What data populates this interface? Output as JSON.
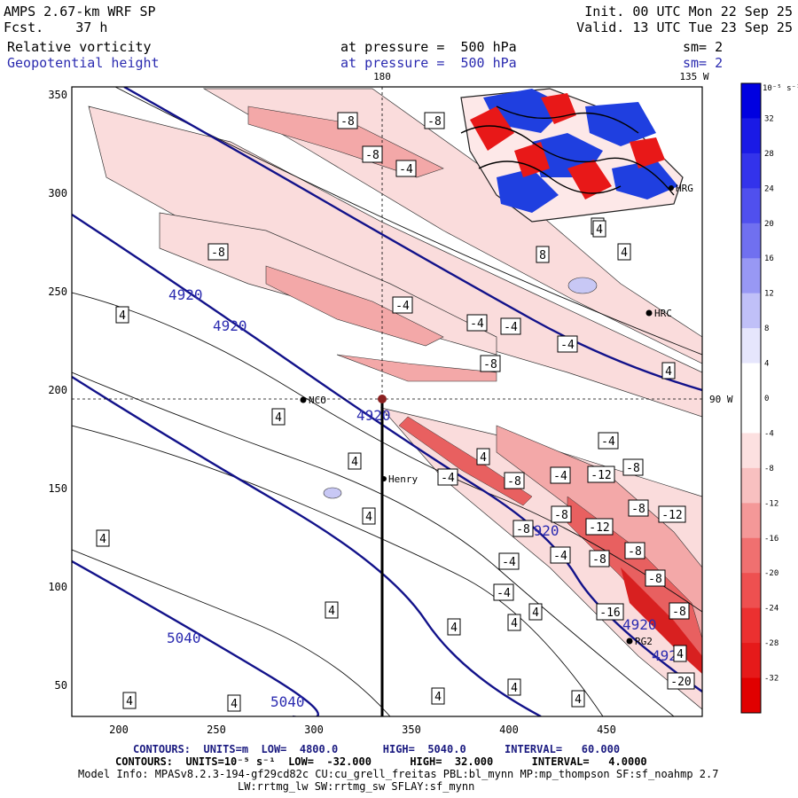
{
  "header": {
    "model": "AMPS 2.67-km WRF SP",
    "fcst_label": "Fcst.",
    "fcst_value": "37 h",
    "init": "Init. 00 UTC Mon 22 Sep 25",
    "valid": "Valid. 13 UTC Tue 23 Sep 25",
    "field1": "Relative vorticity",
    "field1_level": "at pressure =  500 hPa",
    "field1_sm": "sm= 2",
    "field2": "Geopotential height",
    "field2_level": "at pressure =  500 hPa",
    "field2_sm": "sm= 2"
  },
  "map": {
    "lon_top_1": "180",
    "lon_top_2": "135 W",
    "lon_right": "90 W",
    "x_ticks": [
      "200",
      "250",
      "300",
      "350",
      "400",
      "450"
    ],
    "y_ticks": [
      "350",
      "300",
      "250",
      "200",
      "150",
      "100",
      "50"
    ],
    "stations": [
      {
        "name": "NCO"
      },
      {
        "name": "Henry"
      },
      {
        "name": "HRC"
      },
      {
        "name": "HRG"
      },
      {
        "name": "RG2"
      }
    ],
    "height_labels": [
      "4920",
      "4920",
      "4920",
      "4920",
      "4920",
      "4920",
      "5040",
      "5040"
    ],
    "vort_labels": [
      "-8",
      "-8",
      "-8",
      "-4",
      "-8",
      "-4",
      "-4",
      "-4",
      "-4",
      "-8",
      "-4",
      "4",
      "4",
      "4",
      "4",
      "4",
      "8",
      "4",
      "4",
      "4",
      "4",
      "-8",
      "-4",
      "-4",
      "-12",
      "-8",
      "-8",
      "-4",
      "-8",
      "-12",
      "-8",
      "-4",
      "-8",
      "-8",
      "-8",
      "-12",
      "-8",
      "-16",
      "-20",
      "-4",
      "-4",
      "4",
      "4",
      "4",
      "4",
      "4",
      "4",
      "4",
      "4",
      "4",
      "4",
      "4",
      "-4",
      "4"
    ]
  },
  "colorbar": {
    "unit": "10⁻⁵ s⁻¹",
    "labels": [
      "32",
      "28",
      "24",
      "20",
      "16",
      "12",
      "8",
      "4",
      "0",
      "-4",
      "-8",
      "-12",
      "-16",
      "-20",
      "-24",
      "-28",
      "-32"
    ]
  },
  "footer": {
    "line1": "CONTOURS:  UNITS=m  LOW=  4800.0       HIGH=  5040.0      INTERVAL=   60.000",
    "line2": "CONTOURS:  UNITS=10⁻⁵ s⁻¹  LOW=  -32.000      HIGH=  32.000      INTERVAL=   4.0000",
    "line3": "Model Info: MPASv8.2.3-194-gf29cd82c CU:cu_grell_freitas PBL:bl_mynn MP:mp_thompson SF:sf_noahmp 2.7",
    "line4": "LW:rrtmg_lw SW:rrtmg_sw SFLAY:sf_mynn"
  }
}
